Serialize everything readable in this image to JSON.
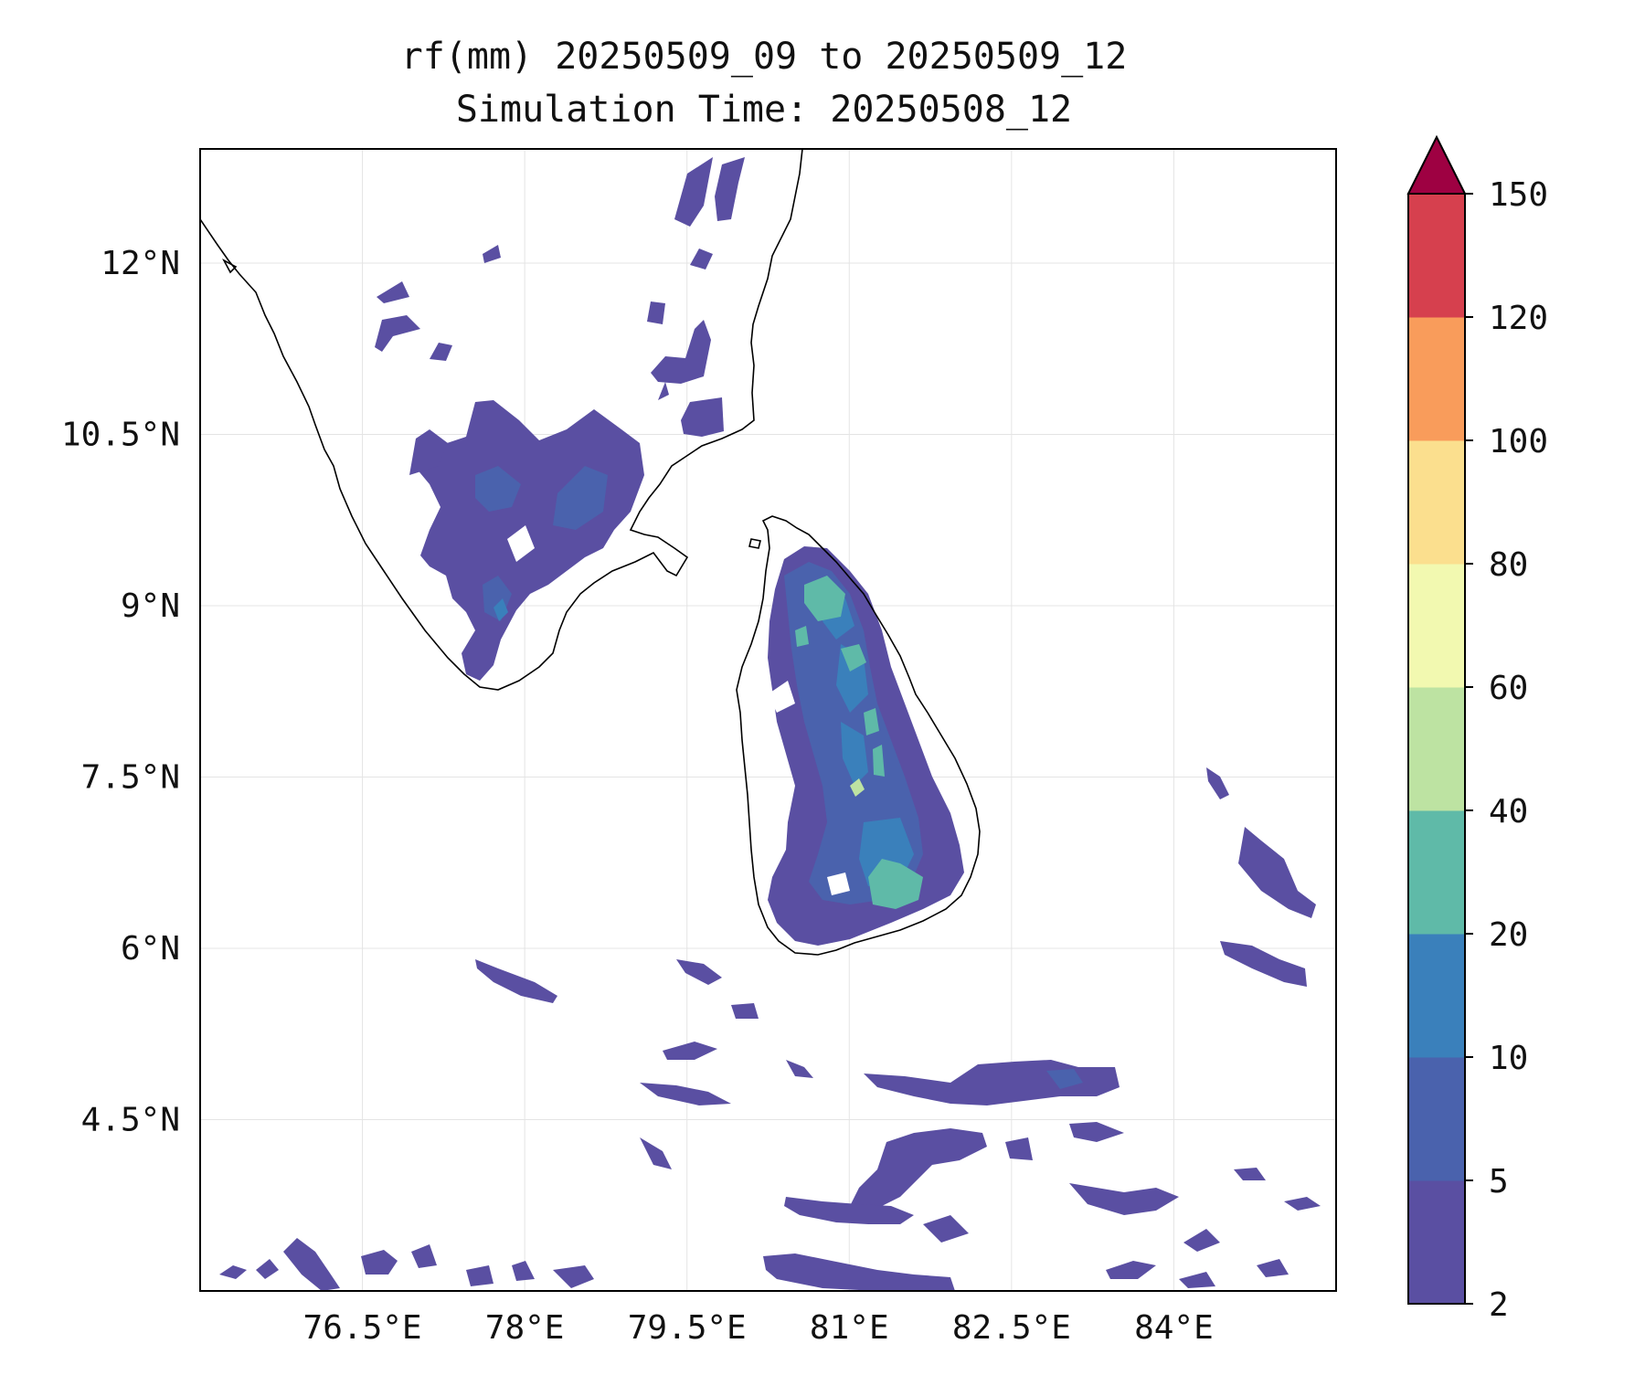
{
  "title": {
    "line1": "rf(mm) 20250509_09 to 20250509_12",
    "line2": "Simulation Time: 20250508_12"
  },
  "map": {
    "lon_range": [
      75.0,
      85.5
    ],
    "lat_range": [
      3.0,
      13.0
    ],
    "x_ticks": [
      {
        "value": 76.5,
        "label": "76.5°E"
      },
      {
        "value": 78.0,
        "label": "78°E"
      },
      {
        "value": 79.5,
        "label": "79.5°E"
      },
      {
        "value": 81.0,
        "label": "81°E"
      },
      {
        "value": 82.5,
        "label": "82.5°E"
      },
      {
        "value": 84.0,
        "label": "84°E"
      }
    ],
    "y_ticks": [
      {
        "value": 12.0,
        "label": "12°N"
      },
      {
        "value": 10.5,
        "label": "10.5°N"
      },
      {
        "value": 9.0,
        "label": "9°N"
      },
      {
        "value": 7.5,
        "label": "7.5°N"
      },
      {
        "value": 6.0,
        "label": "6°N"
      },
      {
        "value": 4.5,
        "label": "4.5°N"
      }
    ],
    "grid": true
  },
  "colorbar": {
    "levels": [
      "2",
      "5",
      "10",
      "20",
      "40",
      "60",
      "80",
      "100",
      "120",
      "150"
    ],
    "colors": [
      "#5a4fa2",
      "#4a62ad",
      "#3a80bb",
      "#5fbaa8",
      "#bde3a2",
      "#f2f9b0",
      "#fbdf8e",
      "#f99c5b",
      "#d6404e"
    ],
    "extend_color": "#9e0142"
  }
}
